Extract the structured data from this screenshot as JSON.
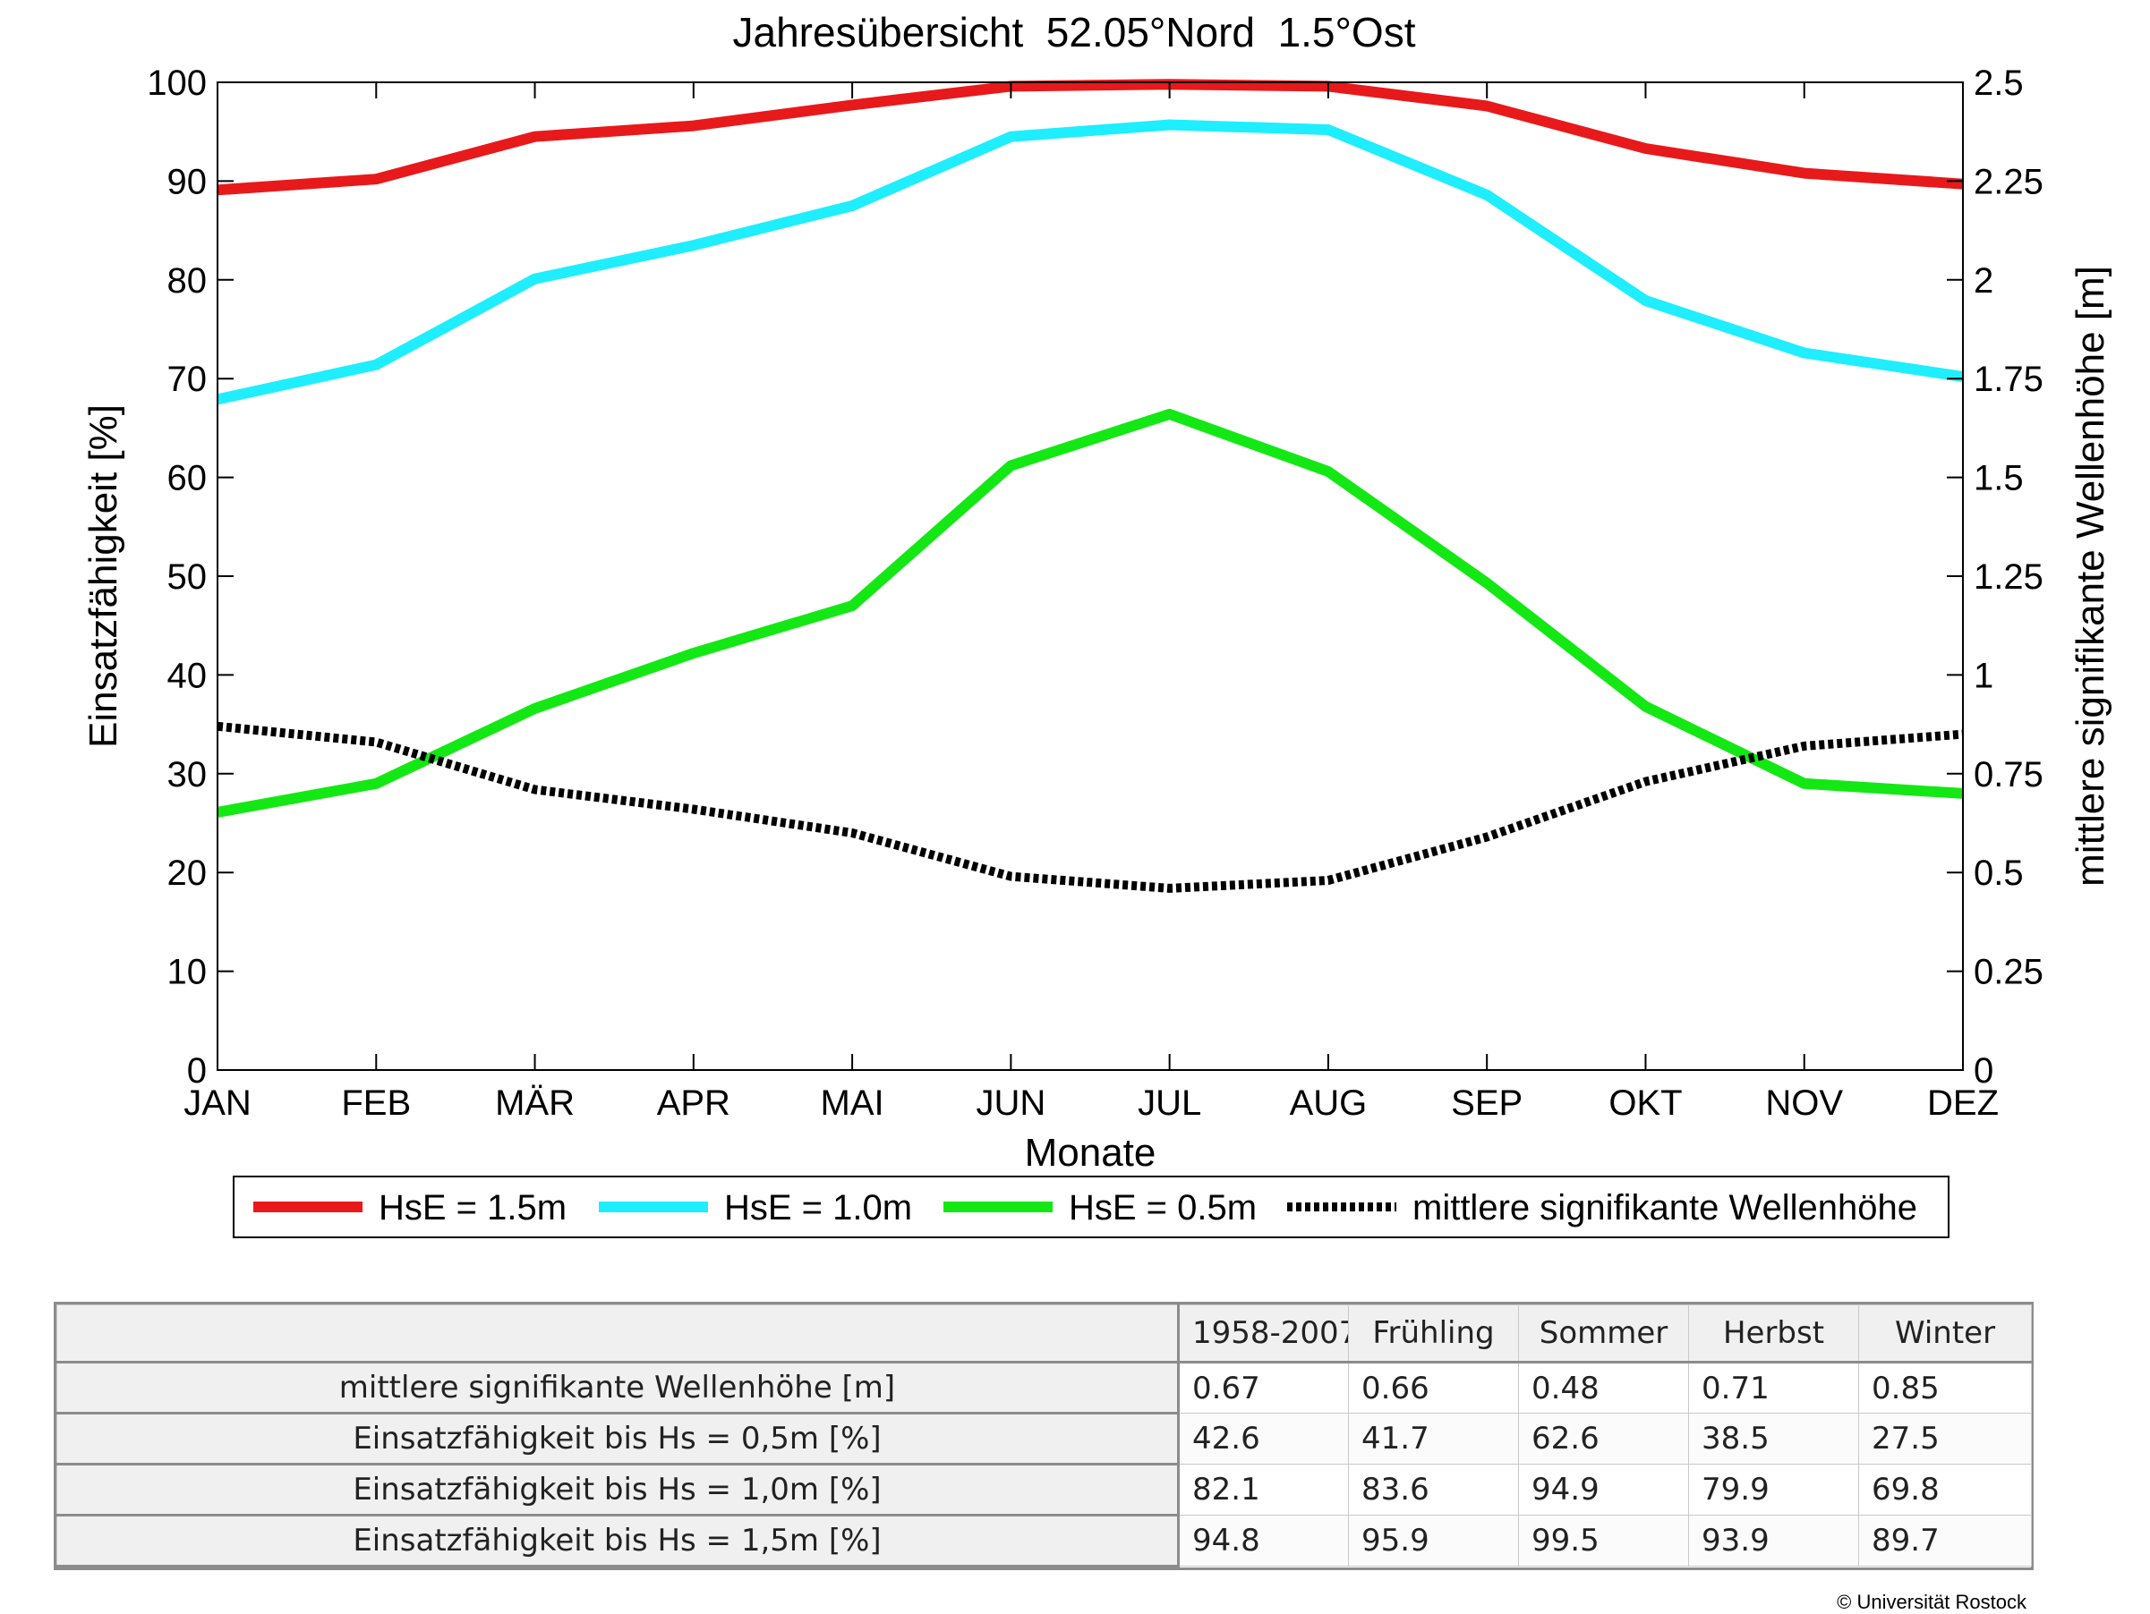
{
  "chart_data": {
    "type": "line",
    "title": "Jahresübersicht  52.05°Nord  1.5°Ost",
    "xlabel": "Monate",
    "ylabel": "Einsatzfähigkeit [%]",
    "y2label": "mittlere signifikante Wellenhöhe [m]",
    "categories": [
      "JAN",
      "FEB",
      "MÄR",
      "APR",
      "MAI",
      "JUN",
      "JUL",
      "AUG",
      "SEP",
      "OKT",
      "NOV",
      "DEZ"
    ],
    "ylim": [
      0,
      100
    ],
    "yticks": [
      "0",
      "10",
      "20",
      "30",
      "40",
      "50",
      "60",
      "70",
      "80",
      "90",
      "100"
    ],
    "y2lim": [
      0,
      2.5
    ],
    "y2ticks": [
      "0",
      "0.25",
      "0.5",
      "0.75",
      "1",
      "1.25",
      "1.5",
      "1.75",
      "2",
      "2.25",
      "2.5"
    ],
    "grid": false,
    "legend_position": "bottom",
    "series": [
      {
        "name": "HsE = 1.5m",
        "axis": "left",
        "color": "#e8191b",
        "style": "solid",
        "values": [
          89.1,
          90.2,
          94.5,
          95.6,
          97.7,
          99.6,
          99.8,
          99.6,
          97.6,
          93.3,
          90.8,
          89.7
        ]
      },
      {
        "name": "HsE = 1.0m",
        "axis": "left",
        "color": "#1eeeff",
        "style": "solid",
        "values": [
          67.9,
          71.4,
          80.1,
          83.5,
          87.5,
          94.5,
          95.7,
          95.2,
          88.6,
          77.9,
          72.6,
          70.2
        ]
      },
      {
        "name": "HsE = 0.5m",
        "axis": "left",
        "color": "#14e814",
        "style": "solid",
        "values": [
          26.1,
          29.0,
          36.6,
          42.2,
          47.0,
          61.2,
          66.4,
          60.6,
          49.3,
          36.8,
          29.0,
          28.0
        ]
      },
      {
        "name": "mittlere signifikante Wellenhöhe",
        "axis": "right",
        "color": "#000000",
        "style": "dotted",
        "values": [
          0.87,
          0.83,
          0.71,
          0.66,
          0.6,
          0.49,
          0.46,
          0.48,
          0.59,
          0.73,
          0.82,
          0.85
        ]
      }
    ]
  },
  "stats_table": {
    "columns": [
      "1958-2007",
      "Frühling",
      "Sommer",
      "Herbst",
      "Winter"
    ],
    "rows": [
      {
        "label": "mittlere signifikante Wellenhöhe [m]",
        "values": [
          "0.67",
          "0.66",
          "0.48",
          "0.71",
          "0.85"
        ]
      },
      {
        "label": "Einsatzfähigkeit bis Hs = 0,5m [%]",
        "values": [
          "42.6",
          "41.7",
          "62.6",
          "38.5",
          "27.5"
        ]
      },
      {
        "label": "Einsatzfähigkeit bis Hs = 1,0m [%]",
        "values": [
          "82.1",
          "83.6",
          "94.9",
          "79.9",
          "69.8"
        ]
      },
      {
        "label": "Einsatzfähigkeit bis Hs = 1,5m [%]",
        "values": [
          "94.8",
          "95.9",
          "99.5",
          "93.9",
          "89.7"
        ]
      }
    ]
  },
  "footer": {
    "copyright": "© Universität Rostock"
  }
}
